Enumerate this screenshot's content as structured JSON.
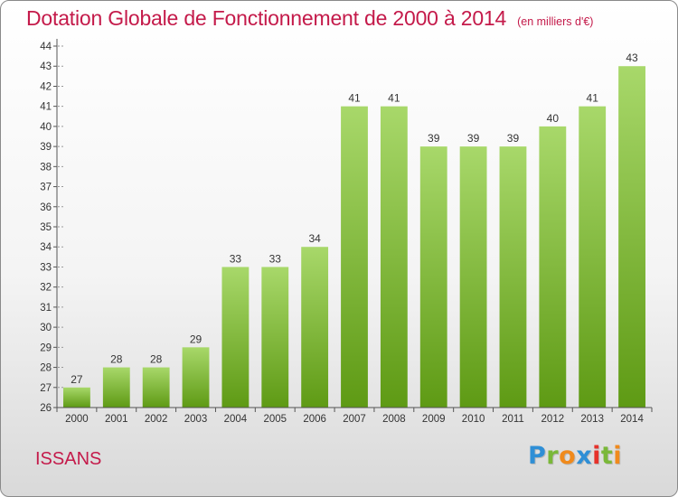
{
  "header": {
    "title": "Dotation Globale de Fonctionnement de 2000 à 2014",
    "subtitle": "(en milliers d'€)"
  },
  "footer": {
    "place": "ISSANS",
    "brand": "Proxiti",
    "brand_letters": [
      {
        "ch": "P",
        "color": "#2f8fd6"
      },
      {
        "ch": "r",
        "color": "#7ab839"
      },
      {
        "ch": "o",
        "color": "#f08a1c"
      },
      {
        "ch": "x",
        "color": "#2f8fd6"
      },
      {
        "ch": "i",
        "color": "#e6322b"
      },
      {
        "ch": "t",
        "color": "#7ab839"
      },
      {
        "ch": "i",
        "color": "#f08a1c"
      }
    ]
  },
  "colors": {
    "accent": "#c41a4a",
    "bar_light": "#a8d86a",
    "bar_dark": "#5e9a14",
    "axis": "#555555",
    "grid_dash": "#999999"
  },
  "chart_data": {
    "type": "bar",
    "categories": [
      "2000",
      "2001",
      "2002",
      "2003",
      "2004",
      "2005",
      "2006",
      "2007",
      "2008",
      "2009",
      "2010",
      "2011",
      "2012",
      "2013",
      "2014"
    ],
    "values": [
      27,
      28,
      28,
      29,
      33,
      33,
      34,
      41,
      41,
      39,
      39,
      39,
      40,
      41,
      43
    ],
    "data_labels": [
      "27",
      "28",
      "28",
      "29",
      "33",
      "33",
      "34",
      "41",
      "41",
      "39",
      "39",
      "39",
      "40",
      "41",
      "43"
    ],
    "title": "Dotation Globale de Fonctionnement de 2000 à 2014",
    "subtitle": "(en milliers d'€)",
    "xlabel": "",
    "ylabel": "",
    "ylim": [
      26,
      44
    ],
    "yticks": [
      26,
      27,
      28,
      29,
      30,
      31,
      32,
      33,
      34,
      35,
      36,
      37,
      38,
      39,
      40,
      41,
      42,
      43,
      44
    ],
    "grid": false,
    "legend": "none"
  }
}
